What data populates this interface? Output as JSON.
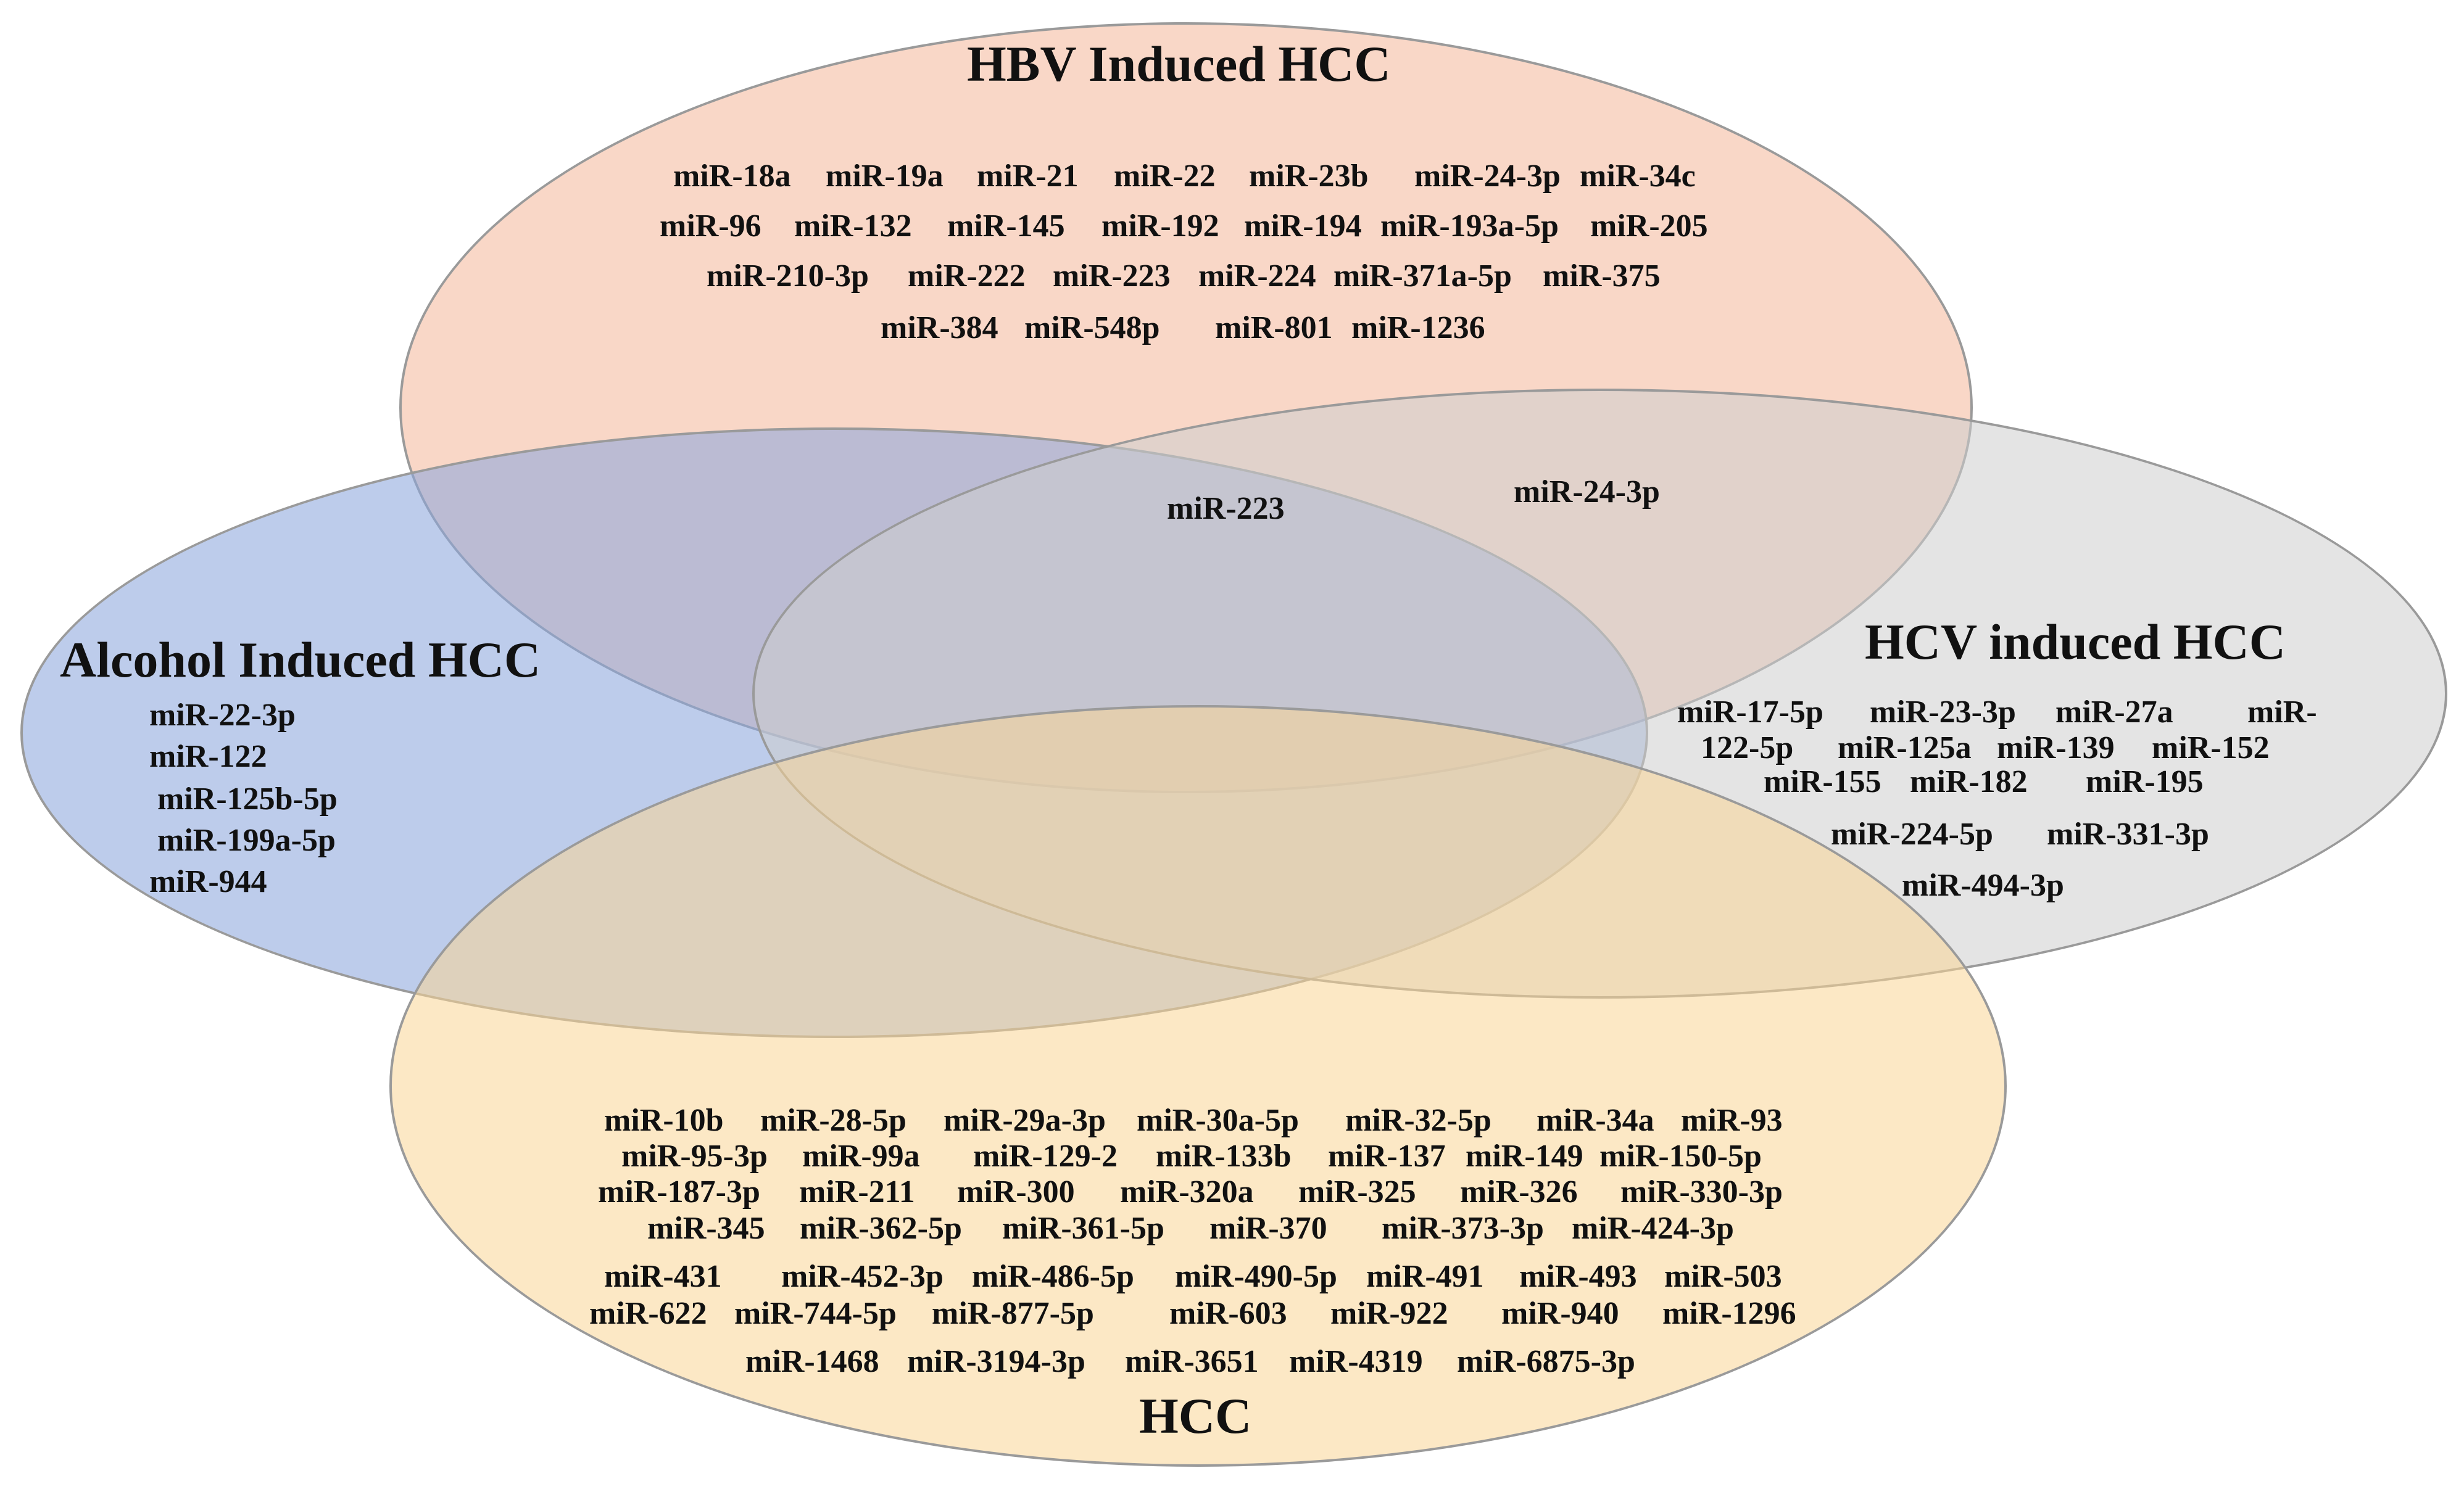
{
  "sets": {
    "hbv": {
      "title": "HBV Induced HCC",
      "color": "#f6bea5"
    },
    "alcohol": {
      "title": "Alcohol Induced HCC",
      "color": "#8da7dd"
    },
    "hcv": {
      "title": "HCV induced HCC",
      "color": "#cecece"
    },
    "hcc": {
      "title": "HCC",
      "color": "#fad596"
    }
  },
  "mirnas": {
    "hbv": [
      "miR-18a",
      "miR-19a",
      "miR-21",
      "miR-22",
      "miR-23b",
      "miR-24-3p",
      "miR-34c",
      "miR-96",
      "miR-132",
      "miR-145",
      "miR-192",
      "miR-194",
      "miR-193a-5p",
      "miR-205",
      "miR-210-3p",
      "miR-222",
      "miR-223",
      "miR-224",
      "miR-371a-5p",
      "miR-375",
      "miR-384",
      "miR-548p",
      "miR-801",
      "miR-1236"
    ],
    "overlap": [
      "miR-223",
      "miR-24-3p"
    ],
    "alcohol": [
      "miR-22-3p",
      "miR-122",
      "miR-125b-5p",
      "miR-199a-5p",
      "miR-944"
    ],
    "hcv": [
      "miR-17-5p",
      "miR-23-3p",
      "miR-27a",
      "miR-",
      "122-5p",
      "miR-125a",
      "miR-139",
      "miR-152",
      "miR-155",
      "miR-182",
      "miR-195",
      "miR-224-5p",
      "miR-331-3p",
      "miR-494-3p"
    ],
    "hcc": [
      "miR-10b",
      "miR-28-5p",
      "miR-29a-3p",
      "miR-30a-5p",
      "miR-32-5p",
      "miR-34a",
      "miR-93",
      "miR-95-3p",
      "miR-99a",
      "miR-129-2",
      "miR-133b",
      "miR-137",
      "miR-149",
      "miR-150-5p",
      "miR-187-3p",
      "miR-211",
      "miR-300",
      "miR-320a",
      "miR-325",
      "miR-326",
      "miR-330-3p",
      "miR-345",
      "miR-362-5p",
      "miR-361-5p",
      "miR-370",
      "miR-373-3p",
      "miR-424-3p",
      "miR-431",
      "miR-452-3p",
      "miR-486-5p",
      "miR-490-5p",
      "miR-491",
      "miR-493",
      "miR-503",
      "miR-622",
      "miR-744-5p",
      "miR-877-5p",
      "miR-603",
      "miR-922",
      "miR-940",
      "miR-1296",
      "miR-1468",
      "miR-3194-3p",
      "miR-3651",
      "miR-4319",
      "miR-6875-3p"
    ]
  }
}
